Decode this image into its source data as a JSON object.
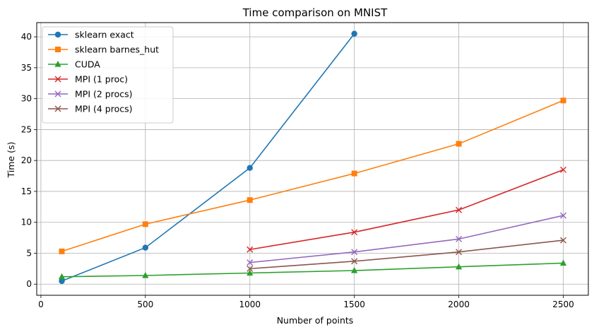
{
  "chart_data": {
    "type": "line",
    "title": "Time comparison on MNIST",
    "xlabel": "Number of points",
    "ylabel": "Time (s)",
    "xlim": [
      -20,
      2620
    ],
    "ylim": [
      -1.8,
      42.3
    ],
    "xticks": [
      0,
      500,
      1000,
      1500,
      2000,
      2500
    ],
    "yticks": [
      0,
      5,
      10,
      15,
      20,
      25,
      30,
      35,
      40
    ],
    "grid": true,
    "legend_position": "top-left",
    "series": [
      {
        "name": "sklearn exact",
        "color": "#1f77b4",
        "marker": "circle",
        "x": [
          100,
          500,
          1000,
          1500
        ],
        "y": [
          0.5,
          5.9,
          18.8,
          40.5
        ]
      },
      {
        "name": "sklearn barnes_hut",
        "color": "#ff7f0e",
        "marker": "square",
        "x": [
          100,
          500,
          1000,
          1500,
          2000,
          2500
        ],
        "y": [
          5.3,
          9.7,
          13.6,
          17.9,
          22.7,
          29.7
        ]
      },
      {
        "name": "CUDA",
        "color": "#2ca02c",
        "marker": "triangle",
        "x": [
          100,
          500,
          1000,
          1500,
          2000,
          2500
        ],
        "y": [
          1.2,
          1.4,
          1.8,
          2.2,
          2.8,
          3.4
        ]
      },
      {
        "name": "MPI (1 proc)",
        "color": "#d62728",
        "marker": "x",
        "x": [
          1000,
          1500,
          2000,
          2500
        ],
        "y": [
          5.6,
          8.4,
          12.0,
          18.5
        ]
      },
      {
        "name": "MPI (2 procs)",
        "color": "#9467bd",
        "marker": "x",
        "x": [
          1000,
          1500,
          2000,
          2500
        ],
        "y": [
          3.5,
          5.2,
          7.3,
          11.1
        ]
      },
      {
        "name": "MPI (4 procs)",
        "color": "#8c564b",
        "marker": "x",
        "x": [
          1000,
          1500,
          2000,
          2500
        ],
        "y": [
          2.5,
          3.7,
          5.2,
          7.1
        ]
      }
    ]
  }
}
